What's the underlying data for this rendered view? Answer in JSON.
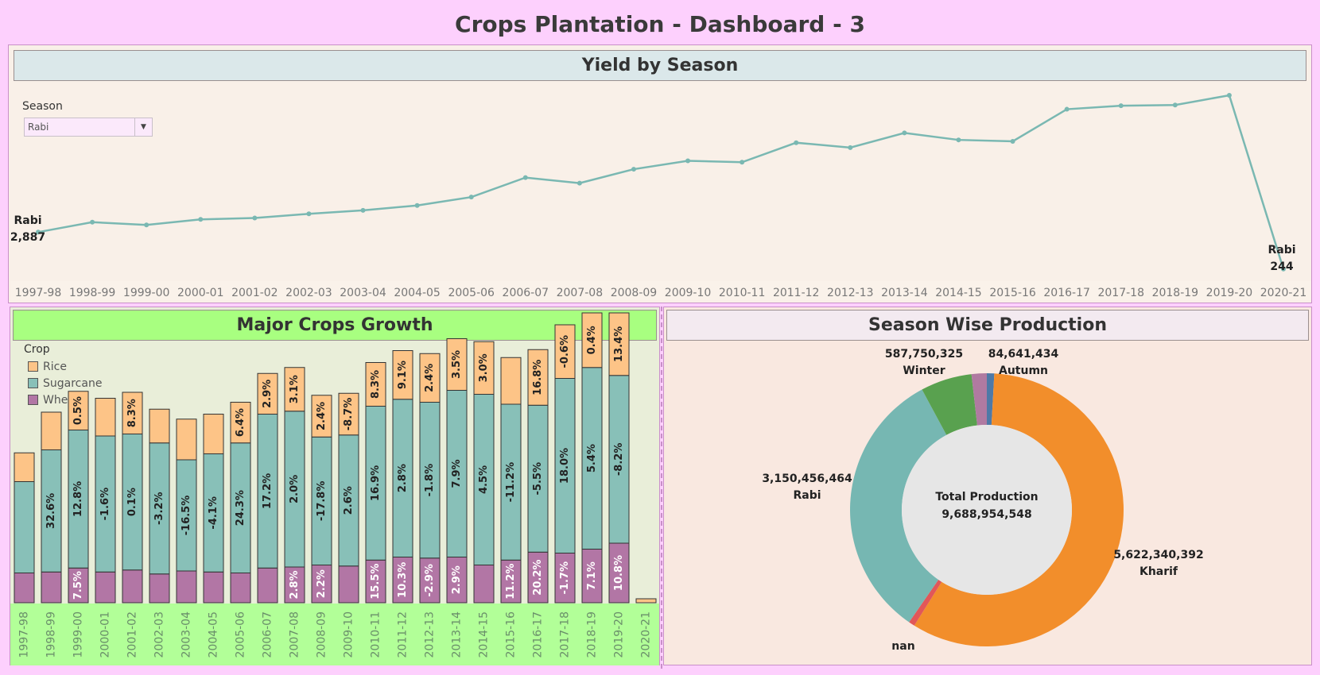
{
  "title": "Crops Plantation - Dashboard - 3",
  "yield_panel": {
    "header": "Yield by Season",
    "filter_label": "Season",
    "filter_value": "Rabi"
  },
  "growth_panel": {
    "header": "Major Crops Growth",
    "legend_title": "Crop"
  },
  "season_panel": {
    "header": "Season Wise Production"
  },
  "colors": {
    "line": "#7ab8b2",
    "rice": "#fdc487",
    "sugarcane": "#88c0b8",
    "wheat": "#b276a5",
    "kharif": "#f28e2b",
    "rabi": "#76b7b2",
    "winter": "#59a14f",
    "autumn": "#4e79a7",
    "other": "#b07aa1"
  },
  "chart_data": [
    {
      "type": "line",
      "x": [
        "1997-98",
        "1998-99",
        "1999-00",
        "2000-01",
        "2001-02",
        "2002-03",
        "2003-04",
        "2004-05",
        "2005-06",
        "2006-07",
        "2007-08",
        "2008-09",
        "2009-10",
        "2010-11",
        "2011-12",
        "2012-13",
        "2013-14",
        "2014-15",
        "2015-16",
        "2016-17",
        "2017-18",
        "2018-19",
        "2019-20",
        "2020-21"
      ],
      "values": [
        2887,
        3600,
        3400,
        3800,
        3900,
        4200,
        4450,
        4800,
        5400,
        6800,
        6400,
        7400,
        8000,
        7900,
        9300,
        8950,
        10000,
        9500,
        9400,
        11700,
        11950,
        12000,
        12700,
        244
      ],
      "annotations": [
        {
          "index": 0,
          "label": "Rabi",
          "value": "2,887"
        },
        {
          "index": 23,
          "label": "Rabi",
          "value": "244"
        }
      ]
    },
    {
      "type": "bar",
      "stacked": true,
      "categories": [
        "1997-98",
        "1998-99",
        "1999-00",
        "2000-01",
        "2001-02",
        "2002-03",
        "2003-04",
        "2004-05",
        "2005-06",
        "2006-07",
        "2007-08",
        "2008-09",
        "2009-10",
        "2010-11",
        "2011-12",
        "2012-13",
        "2013-14",
        "2014-15",
        "2015-16",
        "2016-17",
        "2017-18",
        "2018-19",
        "2019-20",
        "2020-21"
      ],
      "series": [
        {
          "name": "Wheat",
          "values": [
            30,
            31,
            35,
            31,
            33,
            29,
            32,
            31,
            30,
            35,
            36,
            38,
            37,
            43,
            46,
            45,
            46,
            38,
            43,
            51,
            50,
            54,
            60,
            0
          ],
          "labels": [
            "",
            "",
            "7.5%",
            "",
            "",
            "",
            "",
            "",
            "",
            "",
            "2.8%",
            "2.2%",
            "",
            "15.5%",
            "10.3%",
            "-2.9%",
            "2.9%",
            "",
            "11.2%",
            "20.2%",
            "-1.7%",
            "7.1%",
            "10.8%",
            ""
          ]
        },
        {
          "name": "Sugarcane",
          "values": [
            92,
            123,
            139,
            137,
            137,
            132,
            112,
            119,
            131,
            155,
            157,
            129,
            132,
            155,
            159,
            157,
            168,
            172,
            157,
            148,
            176,
            183,
            169,
            0
          ],
          "labels": [
            "",
            "32.6%",
            "12.8%",
            "-1.6%",
            "0.1%",
            "-3.2%",
            "-16.5%",
            "-4.1%",
            "24.3%",
            "17.2%",
            "2.0%",
            "-17.8%",
            "2.6%",
            "16.9%",
            "2.8%",
            "-1.8%",
            "7.9%",
            "4.5%",
            "-11.2%",
            "-5.5%",
            "18.0%",
            "5.4%",
            "-8.2%",
            ""
          ]
        },
        {
          "name": "Rice",
          "values": [
            29,
            38,
            39,
            38,
            42,
            34,
            41,
            40,
            41,
            41,
            44,
            42,
            42,
            44,
            49,
            49,
            52,
            53,
            47,
            56,
            54,
            55,
            63,
            4
          ],
          "labels": [
            "",
            "",
            "0.5%",
            "",
            "8.3%",
            "",
            "",
            "",
            "6.4%",
            "2.9%",
            "3.1%",
            "2.4%",
            "-8.7%",
            "8.3%",
            "9.1%",
            "2.4%",
            "3.5%",
            "3.0%",
            "",
            "16.8%",
            "-0.6%",
            "0.4%",
            "13.4%",
            ""
          ]
        }
      ]
    },
    {
      "type": "pie",
      "donut": true,
      "center_label": "Total Production",
      "center_value": "9,688,954,548",
      "slices": [
        {
          "name": "Autumn",
          "value": 84641434,
          "label": "84,641,434",
          "color": "#4e79a7"
        },
        {
          "name": "Kharif",
          "value": 5622340392,
          "label": "5,622,340,392",
          "color": "#f28e2b"
        },
        {
          "name": "nan",
          "value": 70000000,
          "label": "",
          "color": "#e15759"
        },
        {
          "name": "Rabi",
          "value": 3150456464,
          "label": "3,150,456,464",
          "color": "#76b7b2"
        },
        {
          "name": "Winter",
          "value": 587750325,
          "label": "587,750,325",
          "color": "#59a14f"
        },
        {
          "name": "",
          "value": 173765933,
          "label": "",
          "color": "#b07aa1"
        }
      ],
      "nan_label": "nan"
    }
  ]
}
